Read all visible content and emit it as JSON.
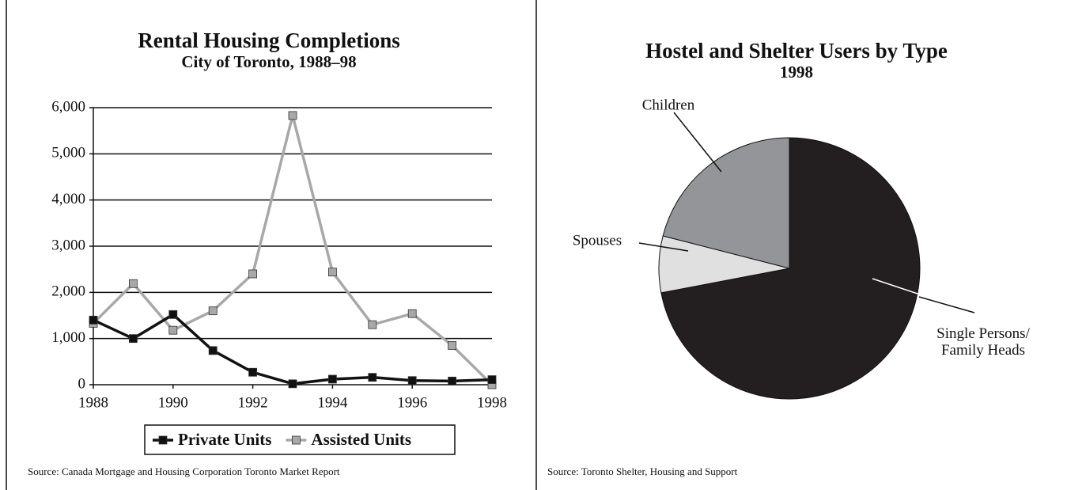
{
  "chart_data": [
    {
      "type": "line",
      "title": "Rental Housing Completions",
      "subtitle": "City of Toronto, 1988–98",
      "x": [
        1988,
        1989,
        1990,
        1991,
        1992,
        1993,
        1994,
        1995,
        1996,
        1997,
        1998
      ],
      "series": [
        {
          "name": "Private Units",
          "color": "#111111",
          "values": [
            1400,
            1000,
            1520,
            740,
            270,
            20,
            120,
            160,
            90,
            80,
            110
          ]
        },
        {
          "name": "Assisted Units",
          "color": "#a8a8a8",
          "values": [
            1330,
            2190,
            1180,
            1600,
            2400,
            5830,
            2440,
            1300,
            1540,
            850,
            0
          ]
        }
      ],
      "xlim": [
        1988,
        1998
      ],
      "xticks": [
        1988,
        1990,
        1992,
        1994,
        1996,
        1998
      ],
      "ylim": [
        0,
        6000
      ],
      "yticks": [
        0,
        {
          "value": 1000,
          "label": "1,000"
        },
        {
          "value": 2000,
          "label": "2,000"
        },
        {
          "value": 3000,
          "label": "3,000"
        },
        {
          "value": 4000,
          "label": "4,000"
        },
        {
          "value": 5000,
          "label": "5,000"
        },
        {
          "value": 6000,
          "label": "6,000"
        }
      ],
      "grid": true,
      "legend": "bottom",
      "source": "Source: Canada Mortgage and Housing Corporation Toronto Market Report"
    },
    {
      "type": "pie",
      "title": "Hostel and Shelter Users by Type",
      "subtitle": "1998",
      "categories": [
        "Single Persons/ Family Heads",
        "Spouses",
        "Children"
      ],
      "values": [
        72,
        7,
        21
      ],
      "colors": [
        "#231f20",
        "#e0e0e0",
        "#939598"
      ],
      "source": "Source: Toronto Shelter, Housing and Support"
    }
  ]
}
